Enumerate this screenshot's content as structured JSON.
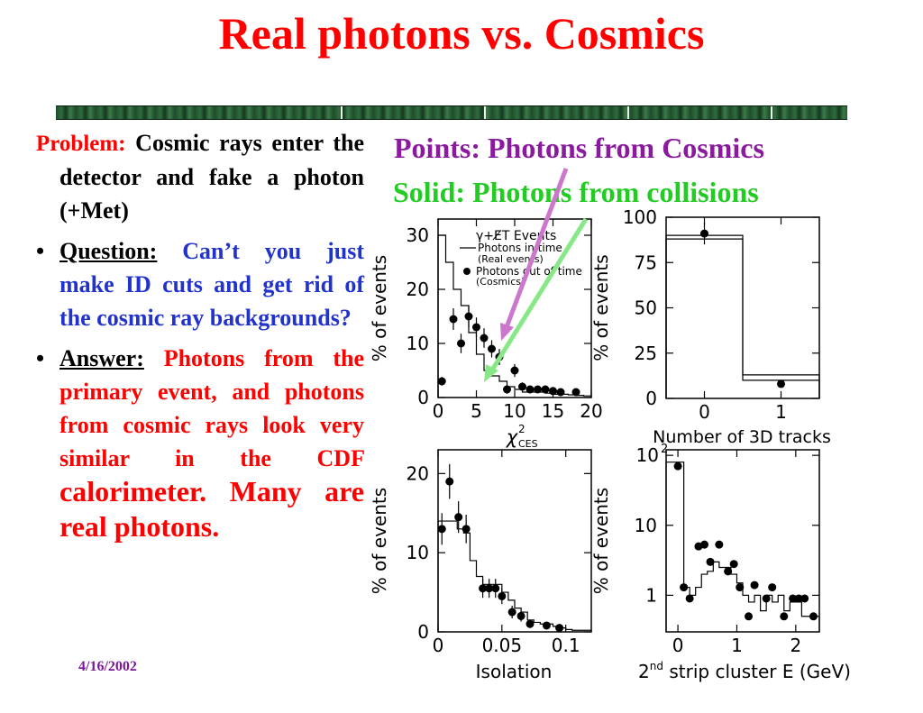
{
  "slide": {
    "title": "Real photons vs. Cosmics",
    "date": "4/16/2002",
    "problem_label": "Problem:",
    "problem_text": "Cosmic rays enter the detector and fake a photon (+Met)",
    "question_label": "Question:",
    "question_text": "Can’t you just make ID cuts and get rid of the cosmic ray backgrounds?",
    "answer_label": "Answer:",
    "answer_text_a": "Photons from the primary event, and photons from cosmic rays look very similar in the CDF",
    "answer_text_b": "calorimeter. Many are real photons.",
    "bullet": "•",
    "caption_points": "Points: Photons from Cosmics",
    "caption_solid": "Solid: Photons from collisions",
    "colors": {
      "title": "#ff0000",
      "points_caption": "#8a1a9e",
      "solid_caption": "#22cc22",
      "question": "#2233cc"
    }
  },
  "chart_data": [
    {
      "type": "line",
      "xlabel": "χ²",
      "xlabel_sub": "CES",
      "ylabel": "% of events",
      "xlim": [
        0,
        20
      ],
      "ylim": [
        0,
        33
      ],
      "xticks": [
        "0",
        "5",
        "10",
        "15",
        "20"
      ],
      "yticks": [
        "0",
        "10",
        "20",
        "30"
      ],
      "legend": {
        "title": "γ+E̸T Events",
        "line": "Photons in time",
        "line_sub": "(Real events)",
        "points": "Photons out of time",
        "points_sub": "(Cosmics)"
      },
      "bins": [
        0,
        1,
        2,
        3,
        4,
        5,
        6,
        7,
        8,
        9,
        10,
        11,
        12,
        13,
        14,
        15,
        16,
        17,
        18,
        19,
        20
      ],
      "solid": [
        30,
        25,
        20,
        17,
        12,
        8,
        5,
        4,
        3,
        2,
        1.5,
        1,
        1,
        1,
        0.8,
        0.6,
        0.6,
        0.5,
        0.4,
        0.3
      ],
      "points": [
        {
          "x": 0.5,
          "y": 3,
          "e": 0.8
        },
        {
          "x": 2,
          "y": 14.5,
          "e": 2
        },
        {
          "x": 3,
          "y": 10,
          "e": 1.8
        },
        {
          "x": 4,
          "y": 15,
          "e": 2
        },
        {
          "x": 5,
          "y": 13,
          "e": 1.8
        },
        {
          "x": 6,
          "y": 11,
          "e": 1.8
        },
        {
          "x": 7,
          "y": 9,
          "e": 1.6
        },
        {
          "x": 8,
          "y": 7.5,
          "e": 1.5
        },
        {
          "x": 9,
          "y": 1.5,
          "e": 0.8
        },
        {
          "x": 10,
          "y": 5,
          "e": 1.2
        },
        {
          "x": 11,
          "y": 2,
          "e": 0.8
        },
        {
          "x": 12,
          "y": 1.5,
          "e": 0.6
        },
        {
          "x": 13,
          "y": 1.5,
          "e": 0.6
        },
        {
          "x": 14,
          "y": 1.5,
          "e": 0.6
        },
        {
          "x": 15,
          "y": 1.2,
          "e": 0.5
        },
        {
          "x": 16,
          "y": 1,
          "e": 0.5
        },
        {
          "x": 18,
          "y": 1,
          "e": 0.5
        }
      ]
    },
    {
      "type": "line",
      "xlabel": "Number of 3D tracks",
      "ylabel": "% of events",
      "xlim": [
        -0.5,
        1.5
      ],
      "ylim": [
        0,
        100
      ],
      "xticks": [
        "0",
        "1"
      ],
      "yticks": [
        "0",
        "25",
        "50",
        "75",
        "100"
      ],
      "bins": [
        -0.5,
        0.5,
        1.5
      ],
      "solid": [
        88,
        13
      ],
      "solid_alt": [
        90,
        10
      ],
      "points": [
        {
          "x": 0,
          "y": 91,
          "e": 6
        },
        {
          "x": 1,
          "y": 8,
          "e": 0
        }
      ]
    },
    {
      "type": "line",
      "xlabel": "Isolation",
      "ylabel": "% of events",
      "xlim": [
        0,
        0.12
      ],
      "ylim": [
        0,
        23
      ],
      "xticks": [
        "0",
        "0.05",
        "0.1"
      ],
      "yticks": [
        "0",
        "10",
        "20"
      ],
      "bins": [
        0,
        0.005,
        0.01,
        0.015,
        0.02,
        0.025,
        0.03,
        0.035,
        0.04,
        0.045,
        0.05,
        0.055,
        0.06,
        0.065,
        0.07,
        0.075,
        0.08,
        0.085,
        0.09,
        0.095,
        0.1,
        0.105,
        0.11,
        0.115,
        0.12
      ],
      "solid": [
        14,
        14,
        14,
        13,
        12.5,
        9,
        7,
        6,
        6,
        6,
        5,
        4,
        3,
        2.5,
        1.5,
        1.2,
        1,
        1,
        0.7,
        0.5,
        0.3,
        0.2,
        0.2,
        0.2
      ],
      "points": [
        {
          "x": 0.003,
          "y": 13,
          "e": 2
        },
        {
          "x": 0.009,
          "y": 19,
          "e": 2.2
        },
        {
          "x": 0.016,
          "y": 14.5,
          "e": 2
        },
        {
          "x": 0.022,
          "y": 13,
          "e": 1.8
        },
        {
          "x": 0.035,
          "y": 5.5,
          "e": 1.2
        },
        {
          "x": 0.04,
          "y": 5.5,
          "e": 1.2
        },
        {
          "x": 0.045,
          "y": 5.5,
          "e": 1.2
        },
        {
          "x": 0.05,
          "y": 4.5,
          "e": 1
        },
        {
          "x": 0.058,
          "y": 2.5,
          "e": 0.8
        },
        {
          "x": 0.065,
          "y": 2,
          "e": 0.7
        },
        {
          "x": 0.072,
          "y": 1,
          "e": 0.5
        },
        {
          "x": 0.085,
          "y": 0.8,
          "e": 0.4
        },
        {
          "x": 0.095,
          "y": 0.5,
          "e": 0.3
        }
      ]
    },
    {
      "type": "line",
      "xlabel": "2nd strip cluster E (GeV)",
      "xlabel_sup": "nd",
      "ylabel": "% of events",
      "yscale": "log",
      "xlim": [
        -0.2,
        2.4
      ],
      "ylim": [
        0.3,
        120
      ],
      "xticks": [
        "0",
        "1",
        "2"
      ],
      "yticks": [
        "1",
        "10",
        "10²"
      ],
      "bins": [
        -0.2,
        0,
        0.1,
        0.2,
        0.3,
        0.4,
        0.5,
        0.6,
        0.7,
        0.8,
        0.9,
        1,
        1.1,
        1.2,
        1.3,
        1.4,
        1.5,
        1.6,
        1.7,
        1.8,
        1.9,
        2,
        2.1,
        2.2,
        2.3,
        2.4
      ],
      "solid": [
        80,
        80,
        1.3,
        1,
        1.3,
        2,
        2.2,
        3,
        2.5,
        2.5,
        2,
        1.5,
        1,
        0.8,
        1,
        0.6,
        1,
        0.8,
        1,
        0.6,
        0.8,
        0.8,
        0.5,
        0.5,
        0.5
      ],
      "points": [
        {
          "x": 0,
          "y": 70,
          "e": 0
        },
        {
          "x": 0.1,
          "y": 1.3,
          "e": 0
        },
        {
          "x": 0.2,
          "y": 0.9,
          "e": 0
        },
        {
          "x": 0.35,
          "y": 5,
          "e": 0
        },
        {
          "x": 0.45,
          "y": 5.3,
          "e": 0
        },
        {
          "x": 0.55,
          "y": 3,
          "e": 0
        },
        {
          "x": 0.7,
          "y": 5.3,
          "e": 0
        },
        {
          "x": 0.85,
          "y": 2.2,
          "e": 0
        },
        {
          "x": 0.95,
          "y": 2.8,
          "e": 0
        },
        {
          "x": 1.05,
          "y": 1.3,
          "e": 0
        },
        {
          "x": 1.2,
          "y": 0.5,
          "e": 0
        },
        {
          "x": 1.3,
          "y": 1.4,
          "e": 0
        },
        {
          "x": 1.5,
          "y": 0.9,
          "e": 0
        },
        {
          "x": 1.6,
          "y": 1.3,
          "e": 0
        },
        {
          "x": 1.8,
          "y": 0.5,
          "e": 0
        },
        {
          "x": 1.95,
          "y": 0.9,
          "e": 0
        },
        {
          "x": 2.05,
          "y": 0.9,
          "e": 0
        },
        {
          "x": 2.15,
          "y": 0.9,
          "e": 0
        },
        {
          "x": 2.3,
          "y": 0.5,
          "e": 0
        }
      ]
    }
  ]
}
